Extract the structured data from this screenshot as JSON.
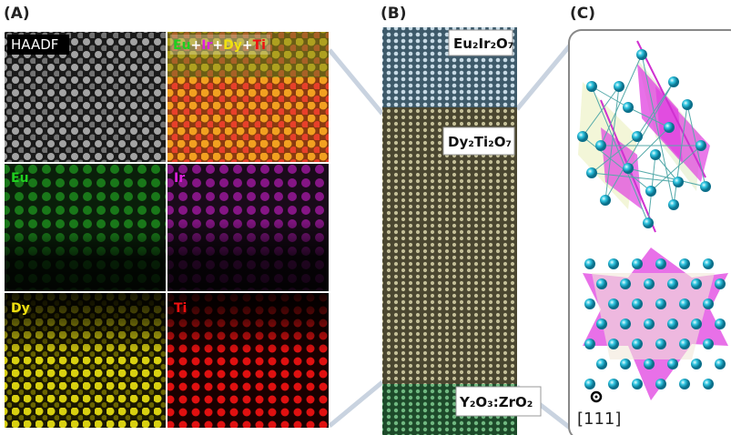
{
  "panel_a": {
    "label": "(A)",
    "haadf": "HAADF",
    "overlay": [
      "Eu",
      "+",
      "Ir",
      "+",
      "Dy",
      "+",
      "Ti"
    ],
    "maps": [
      "Eu",
      "Ir",
      "Dy",
      "Ti"
    ]
  },
  "panel_b": {
    "label": "(B)",
    "layers": [
      "Eu₂Ir₂O₇",
      "Dy₂Ti₂O₇",
      "Y₂O₃:ZrO₂"
    ]
  },
  "panel_c": {
    "label": "(C)",
    "direction": "[111]"
  }
}
